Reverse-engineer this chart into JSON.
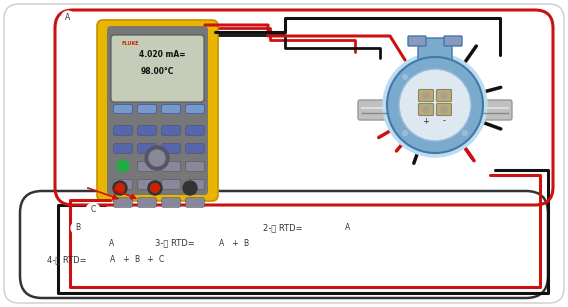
{
  "bg": "#f5f5f5",
  "white": "#ffffff",
  "red": "#cc1111",
  "black": "#111111",
  "dark_gray": "#444444",
  "yellow": "#e8b500",
  "yellow_dark": "#c89000",
  "gray_body": "#888888",
  "gray_screen": "#9aaa88",
  "blue_rtd": "#7aaacc",
  "blue_rtd_light": "#aaccee",
  "blue_rtd_dark": "#4477aa",
  "pipe_gray": "#aaaaaa",
  "text_color": "#222222",
  "figsize": [
    5.68,
    3.07
  ],
  "dpi": 100,
  "text_2wire": "2-线 RTD=",
  "text_3wire": "3-线 RTD=",
  "text_4wire": "4-线 RTD="
}
